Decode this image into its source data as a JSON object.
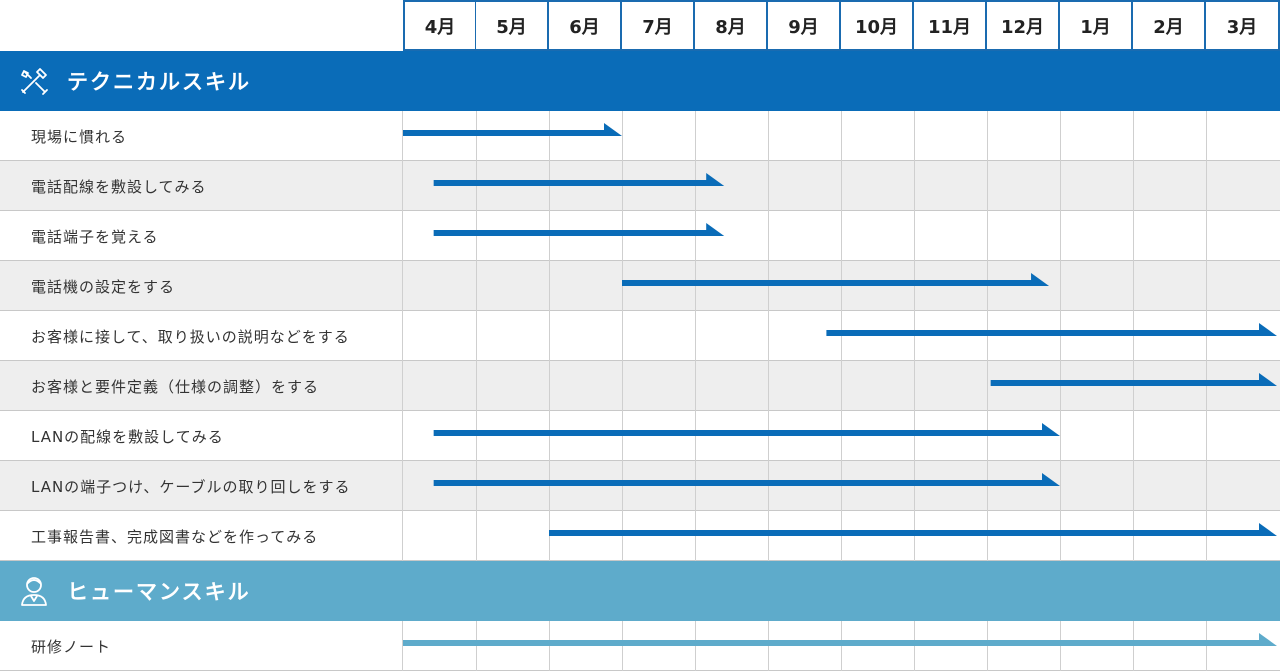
{
  "months": [
    "4月",
    "5月",
    "6月",
    "7月",
    "8月",
    "9月",
    "10月",
    "11月",
    "12月",
    "1月",
    "2月",
    "3月"
  ],
  "sections": [
    {
      "title": "テクニカルスキル",
      "icon": "tools-icon",
      "color": "#0a6cb8",
      "bar_color": "#0a6cb8",
      "tasks": [
        {
          "label": "現場に慣れる",
          "start": 0.0,
          "end": 3.0
        },
        {
          "label": "電話配線を敷設してみる",
          "start": 0.42,
          "end": 4.4
        },
        {
          "label": "電話端子を覚える",
          "start": 0.42,
          "end": 4.4
        },
        {
          "label": "電話機の設定をする",
          "start": 3.0,
          "end": 8.85
        },
        {
          "label": "お客様に接して、取り扱いの説明などをする",
          "start": 5.8,
          "end": 12.0
        },
        {
          "label": "お客様と要件定義（仕様の調整）をする",
          "start": 8.05,
          "end": 12.0
        },
        {
          "label": "LANの配線を敷設してみる",
          "start": 0.42,
          "end": 9.0
        },
        {
          "label": "LANの端子つけ、ケーブルの取り回しをする",
          "start": 0.42,
          "end": 9.0
        },
        {
          "label": "工事報告書、完成図書などを作ってみる",
          "start": 2.0,
          "end": 12.0
        }
      ]
    },
    {
      "title": "ヒューマンスキル",
      "icon": "person-icon",
      "color": "#5eabcb",
      "bar_color": "#5eabcb",
      "tasks": [
        {
          "label": "研修ノート",
          "start": 0.0,
          "end": 12.0
        }
      ]
    }
  ],
  "chart_data": {
    "type": "bar",
    "categories": [
      "4月",
      "5月",
      "6月",
      "7月",
      "8月",
      "9月",
      "10月",
      "11月",
      "12月",
      "1月",
      "2月",
      "3月"
    ],
    "series": [
      {
        "group": "テクニカルスキル",
        "task": "現場に慣れる",
        "start": 0.0,
        "end": 3.0
      },
      {
        "group": "テクニカルスキル",
        "task": "電話配線を敷設してみる",
        "start": 0.42,
        "end": 4.4
      },
      {
        "group": "テクニカルスキル",
        "task": "電話端子を覚える",
        "start": 0.42,
        "end": 4.4
      },
      {
        "group": "テクニカルスキル",
        "task": "電話機の設定をする",
        "start": 3.0,
        "end": 8.85
      },
      {
        "group": "テクニカルスキル",
        "task": "お客様に接して、取り扱いの説明などをする",
        "start": 5.8,
        "end": 12.0
      },
      {
        "group": "テクニカルスキル",
        "task": "お客様と要件定義（仕様の調整）をする",
        "start": 8.05,
        "end": 12.0
      },
      {
        "group": "テクニカルスキル",
        "task": "LANの配線を敷設してみる",
        "start": 0.42,
        "end": 9.0
      },
      {
        "group": "テクニカルスキル",
        "task": "LANの端子つけ、ケーブルの取り回しをする",
        "start": 0.42,
        "end": 9.0
      },
      {
        "group": "テクニカルスキル",
        "task": "工事報告書、完成図書などを作ってみる",
        "start": 2.0,
        "end": 12.0
      },
      {
        "group": "ヒューマンスキル",
        "task": "研修ノート",
        "start": 0.0,
        "end": 12.0
      }
    ],
    "grid": true
  }
}
